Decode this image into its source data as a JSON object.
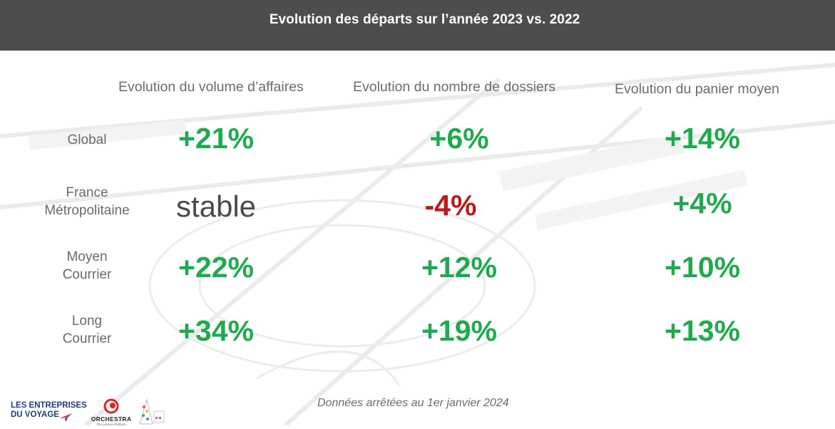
{
  "header": {
    "title": "Evolution des départs sur l’année 2023 vs. 2022"
  },
  "columns": [
    "Evolution du volume d’affaires",
    "Evolution du nombre de dossiers",
    "Evolution du panier moyen"
  ],
  "rows": [
    {
      "label": "Global",
      "values": [
        "+21%",
        "+6%",
        "+14%"
      ]
    },
    {
      "label": "France\nMétropolitaine",
      "values": [
        "stable",
        "-4%",
        "+4%"
      ]
    },
    {
      "label": "Moyen\nCourrier",
      "values": [
        "+22%",
        "+12%",
        "+10%"
      ]
    },
    {
      "label": "Long\nCourrier",
      "values": [
        "+34%",
        "+19%",
        "+13%"
      ]
    }
  ],
  "colors": {
    "positive": "#1faa4e",
    "negative": "#b81b1b",
    "neutral": "#4a4a4a",
    "header_bg": "#4d4d4d"
  },
  "footer": {
    "note": "Données arrêtées au 1er janvier 2024"
  },
  "logos": {
    "entreprises_du_voyage": "LES ENTREPRISES\nDU VOYAGE",
    "orchestra": "ORCHESTRA",
    "orchestra_tagline": "The Leisure Platform"
  }
}
